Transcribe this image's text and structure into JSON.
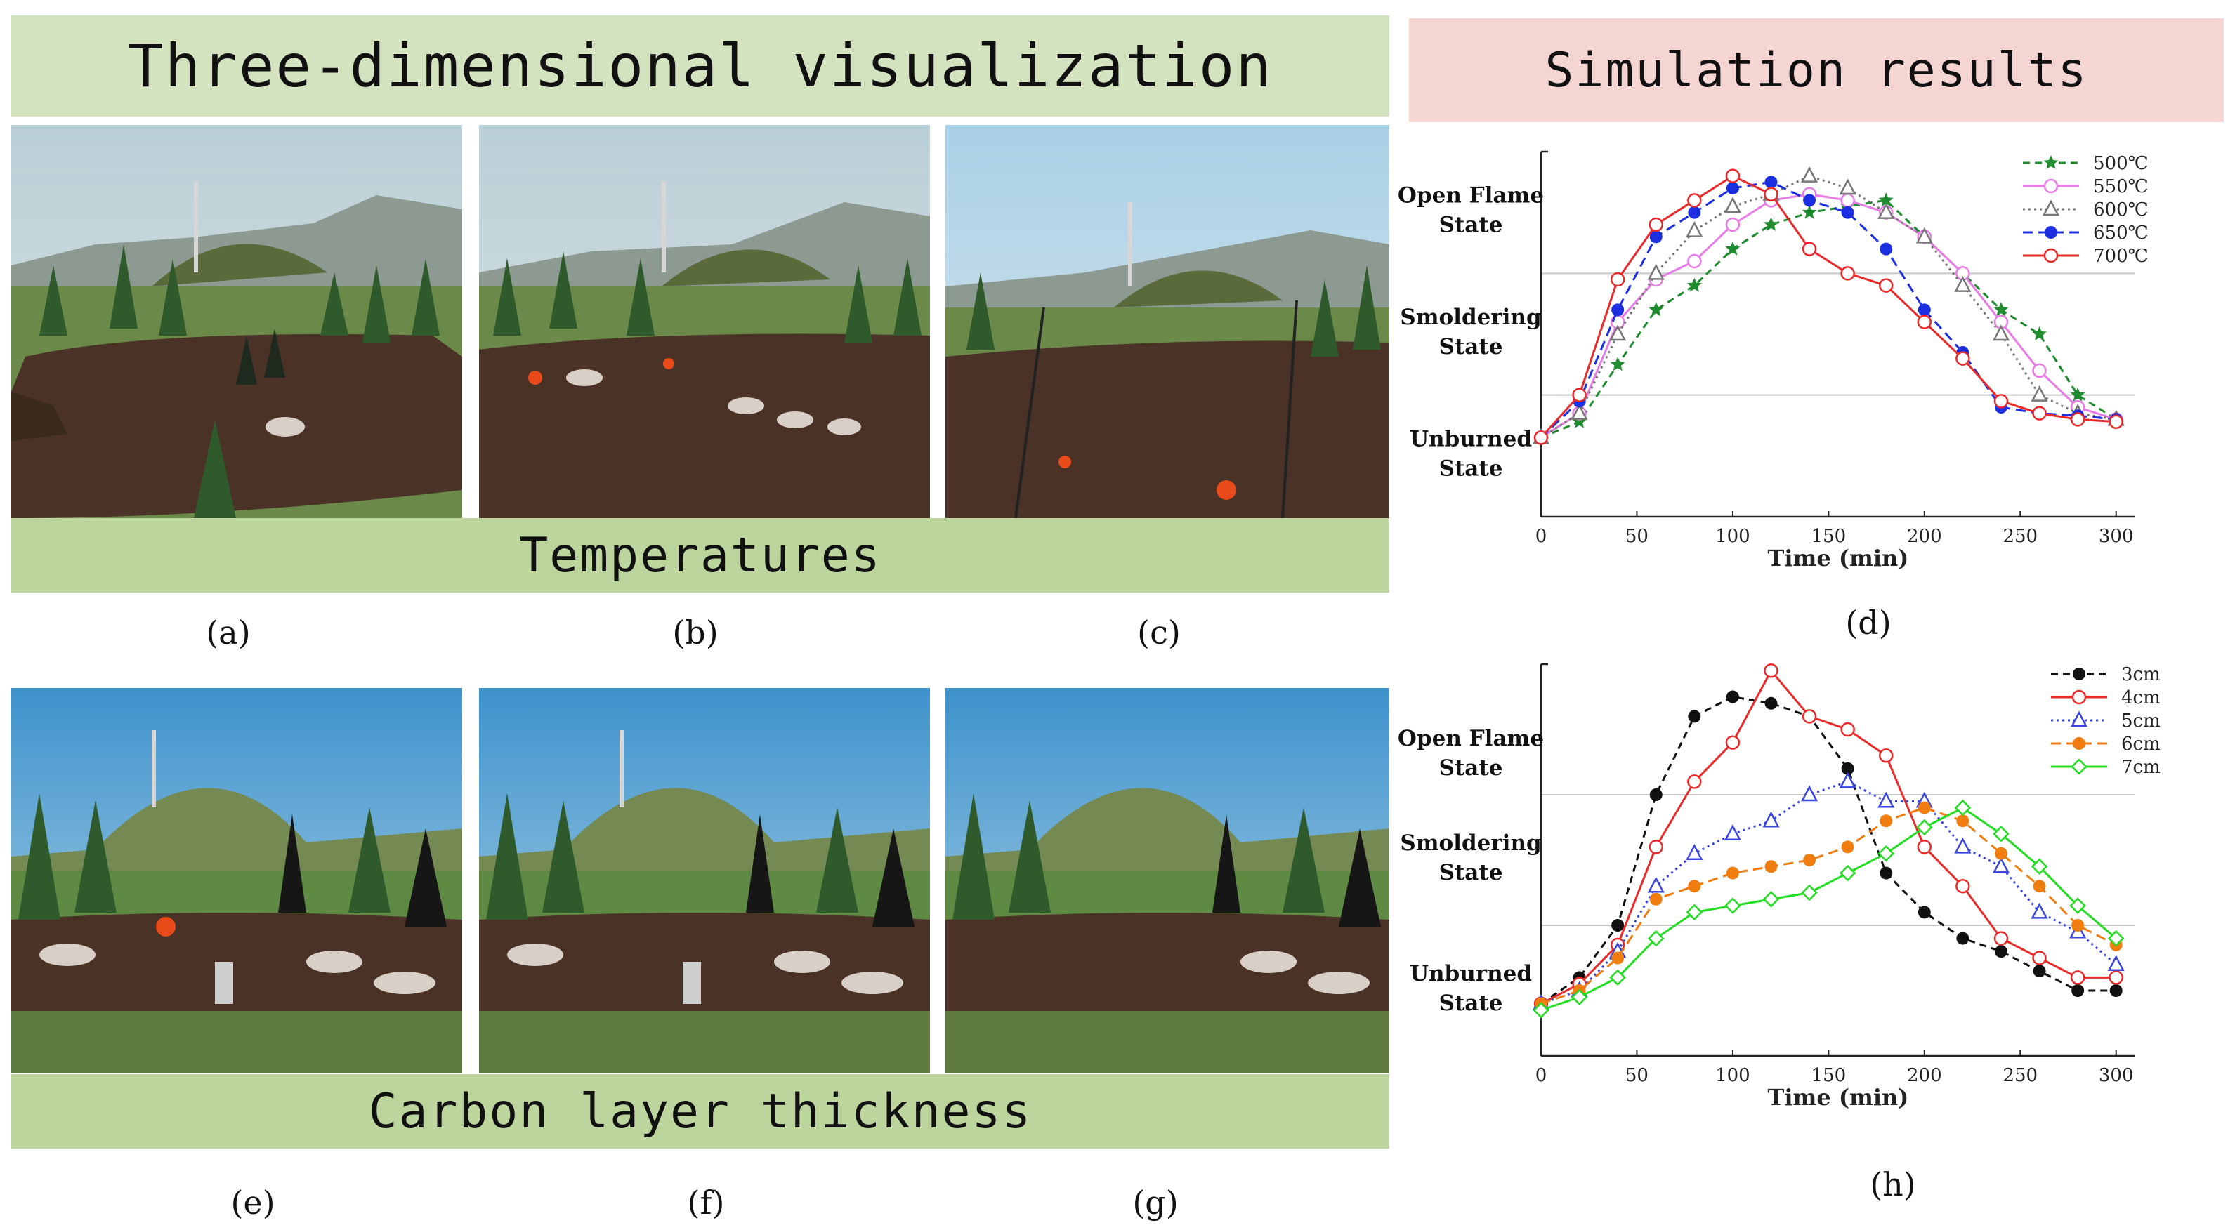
{
  "banners": {
    "visualization": "Three-dimensional visualization",
    "simulation": "Simulation results"
  },
  "strips": {
    "temperatures": "Temperatures",
    "carbon": "Carbon layer thickness"
  },
  "panel_labels": {
    "a": "(a)",
    "b": "(b)",
    "c": "(c)",
    "d": "(d)",
    "e": "(e)",
    "f": "(f)",
    "g": "(g)",
    "h": "(h)"
  },
  "colors": {
    "banner_viz": "#d3e3bf",
    "banner_sim": "#f5d5d2",
    "strip": "#bcd59c"
  },
  "chart_data": [
    {
      "type": "line",
      "id": "d",
      "xlabel": "Time (min)",
      "xlim": [
        0,
        310
      ],
      "x_ticks": [
        0,
        50,
        100,
        150,
        200,
        250,
        300
      ],
      "ylim": [
        0,
        3
      ],
      "y_category_labels": [
        {
          "lines": [
            "Open Flame",
            "State"
          ],
          "value": 2.5
        },
        {
          "lines": [
            "Smoldering",
            "State"
          ],
          "value": 1.5
        },
        {
          "lines": [
            "Unburned",
            "State"
          ],
          "value": 0.5
        }
      ],
      "grid_y": [
        1,
        2
      ],
      "legend_position": "top-right",
      "series": [
        {
          "name": "500℃",
          "color": "#1e8c2e",
          "dash": "10,7",
          "marker": "star",
          "x": [
            0,
            20,
            40,
            60,
            80,
            100,
            120,
            140,
            160,
            180,
            200,
            220,
            240,
            260,
            280,
            300
          ],
          "y": [
            0.65,
            0.78,
            1.25,
            1.7,
            1.9,
            2.2,
            2.4,
            2.5,
            2.55,
            2.6,
            2.3,
            2.0,
            1.7,
            1.5,
            1.0,
            0.8
          ]
        },
        {
          "name": "550℃",
          "color": "#e87ce6",
          "dash": "",
          "marker": "circle-open",
          "x": [
            0,
            20,
            40,
            60,
            80,
            100,
            120,
            140,
            160,
            180,
            200,
            220,
            240,
            260,
            280,
            300
          ],
          "y": [
            0.65,
            0.85,
            1.6,
            1.95,
            2.1,
            2.4,
            2.6,
            2.65,
            2.6,
            2.5,
            2.3,
            2.0,
            1.6,
            1.2,
            0.9,
            0.8
          ]
        },
        {
          "name": "600℃",
          "color": "#777777",
          "dash": "3,5",
          "marker": "triangle-open",
          "x": [
            0,
            20,
            40,
            60,
            80,
            100,
            120,
            140,
            160,
            180,
            200,
            220,
            240,
            260,
            280,
            300
          ],
          "y": [
            0.65,
            0.85,
            1.5,
            2.0,
            2.35,
            2.55,
            2.65,
            2.8,
            2.7,
            2.5,
            2.3,
            1.9,
            1.5,
            1.0,
            0.85,
            0.8
          ]
        },
        {
          "name": "650℃",
          "color": "#1c2fe0",
          "dash": "14,8",
          "marker": "circle-filled",
          "x": [
            0,
            20,
            40,
            60,
            80,
            100,
            120,
            140,
            160,
            180,
            200,
            220,
            240,
            260,
            280,
            300
          ],
          "y": [
            0.65,
            0.95,
            1.7,
            2.3,
            2.5,
            2.7,
            2.75,
            2.6,
            2.5,
            2.2,
            1.7,
            1.35,
            0.9,
            0.85,
            0.83,
            0.8
          ]
        },
        {
          "name": "700℃",
          "color": "#ea2a2a",
          "dash": "",
          "marker": "circle-open",
          "x": [
            0,
            20,
            40,
            60,
            80,
            100,
            120,
            140,
            160,
            180,
            200,
            220,
            240,
            260,
            280,
            300
          ],
          "y": [
            0.65,
            1.0,
            1.95,
            2.4,
            2.6,
            2.8,
            2.65,
            2.2,
            2.0,
            1.9,
            1.6,
            1.3,
            0.95,
            0.85,
            0.8,
            0.78
          ]
        }
      ]
    },
    {
      "type": "line",
      "id": "h",
      "xlabel": "Time (min)",
      "xlim": [
        0,
        310
      ],
      "x_ticks": [
        0,
        50,
        100,
        150,
        200,
        250,
        300
      ],
      "ylim": [
        0,
        3
      ],
      "y_category_labels": [
        {
          "lines": [
            "Open Flame",
            "State"
          ],
          "value": 2.3
        },
        {
          "lines": [
            "Smoldering",
            "State"
          ],
          "value": 1.5
        },
        {
          "lines": [
            "Unburned",
            "State"
          ],
          "value": 0.5
        }
      ],
      "grid_y": [
        1,
        2
      ],
      "legend_position": "top-right",
      "series": [
        {
          "name": "3cm",
          "color": "#111111",
          "dash": "10,7",
          "marker": "circle-filled",
          "x": [
            0,
            20,
            40,
            60,
            80,
            100,
            120,
            140,
            160,
            180,
            200,
            220,
            240,
            260,
            280,
            300
          ],
          "y": [
            0.4,
            0.6,
            1.0,
            2.0,
            2.6,
            2.75,
            2.7,
            2.6,
            2.2,
            1.4,
            1.1,
            0.9,
            0.8,
            0.65,
            0.5,
            0.5
          ]
        },
        {
          "name": "4cm",
          "color": "#ea2a2a",
          "dash": "",
          "marker": "circle-open",
          "x": [
            0,
            20,
            40,
            60,
            80,
            100,
            120,
            140,
            160,
            180,
            200,
            220,
            240,
            260,
            280,
            300
          ],
          "y": [
            0.4,
            0.55,
            0.85,
            1.6,
            2.1,
            2.4,
            2.95,
            2.6,
            2.5,
            2.3,
            1.6,
            1.3,
            0.9,
            0.75,
            0.6,
            0.6
          ]
        },
        {
          "name": "5cm",
          "color": "#3a46e2",
          "dash": "3,5",
          "marker": "triangle-open",
          "x": [
            0,
            20,
            40,
            60,
            80,
            100,
            120,
            140,
            160,
            180,
            200,
            220,
            240,
            260,
            280,
            300
          ],
          "y": [
            0.4,
            0.5,
            0.8,
            1.3,
            1.55,
            1.7,
            1.8,
            2.0,
            2.1,
            1.95,
            1.95,
            1.6,
            1.45,
            1.1,
            0.95,
            0.7
          ]
        },
        {
          "name": "6cm",
          "color": "#f07d10",
          "dash": "14,8",
          "marker": "circle-filled",
          "x": [
            0,
            20,
            40,
            60,
            80,
            100,
            120,
            140,
            160,
            180,
            200,
            220,
            240,
            260,
            280,
            300
          ],
          "y": [
            0.4,
            0.5,
            0.75,
            1.2,
            1.3,
            1.4,
            1.45,
            1.5,
            1.6,
            1.8,
            1.9,
            1.8,
            1.55,
            1.3,
            1.0,
            0.85
          ]
        },
        {
          "name": "7cm",
          "color": "#22dd22",
          "dash": "",
          "marker": "diamond-open",
          "x": [
            0,
            20,
            40,
            60,
            80,
            100,
            120,
            140,
            160,
            180,
            200,
            220,
            240,
            260,
            280,
            300
          ],
          "y": [
            0.35,
            0.45,
            0.6,
            0.9,
            1.1,
            1.15,
            1.2,
            1.25,
            1.4,
            1.55,
            1.75,
            1.9,
            1.7,
            1.45,
            1.15,
            0.9
          ]
        }
      ]
    }
  ]
}
